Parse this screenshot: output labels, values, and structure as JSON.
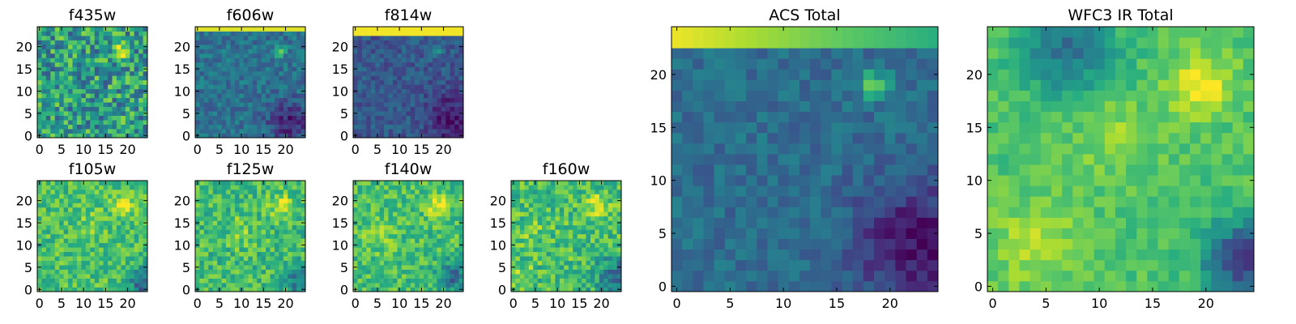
{
  "chart_data": [
    {
      "type": "heatmap",
      "title": "f435w",
      "x_ticks": [
        "0",
        "5",
        "10",
        "15",
        "20"
      ],
      "y_ticks": [
        "0",
        "5",
        "10",
        "15",
        "20"
      ],
      "xlim": [
        0,
        25
      ],
      "ylim": [
        0,
        25
      ],
      "grid_size": 25,
      "colormap": "viridis",
      "features": {
        "base": 0.55,
        "noise": 0.28,
        "blobs": [
          {
            "x": 18.5,
            "y": 19.0,
            "sigma": 1.2,
            "amp": 0.35
          }
        ]
      }
    },
    {
      "type": "heatmap",
      "title": "f606w",
      "x_ticks": [
        "0",
        "5",
        "10",
        "15",
        "20"
      ],
      "y_ticks": [
        "0",
        "5",
        "10",
        "15",
        "20"
      ],
      "xlim": [
        0,
        25
      ],
      "ylim": [
        0,
        25
      ],
      "grid_size": 25,
      "colormap": "viridis",
      "features": {
        "base": 0.38,
        "noise": 0.12,
        "top_band": 0.95,
        "top_rows": 1,
        "blobs": [
          {
            "x": 18.5,
            "y": 19.0,
            "sigma": 1.0,
            "amp": 0.35
          }
        ],
        "dark_region": {
          "x": 21.0,
          "y": 3.0,
          "sigma": 3.5,
          "amp": -0.28
        }
      }
    },
    {
      "type": "heatmap",
      "title": "f814w",
      "x_ticks": [
        "0",
        "5",
        "10",
        "15",
        "20"
      ],
      "y_ticks": [
        "0",
        "5",
        "10",
        "15",
        "20"
      ],
      "xlim": [
        0,
        25
      ],
      "ylim": [
        0,
        25
      ],
      "grid_size": 25,
      "colormap": "viridis",
      "features": {
        "base": 0.28,
        "noise": 0.1,
        "top_band": 0.98,
        "top_rows": 2,
        "blobs": [
          {
            "x": 18.5,
            "y": 19.0,
            "sigma": 1.0,
            "amp": 0.2
          }
        ],
        "dark_region": {
          "x": 22.0,
          "y": 4.0,
          "sigma": 4.0,
          "amp": -0.22
        }
      }
    },
    {
      "type": "heatmap",
      "title": "f105w",
      "x_ticks": [
        "0",
        "5",
        "10",
        "15",
        "20"
      ],
      "y_ticks": [
        "0",
        "5",
        "10",
        "15",
        "20"
      ],
      "xlim": [
        0,
        25
      ],
      "ylim": [
        0,
        25
      ],
      "grid_size": 25,
      "colormap": "viridis",
      "features": {
        "base": 0.7,
        "noise": 0.15,
        "blobs": [
          {
            "x": 19.0,
            "y": 19.0,
            "sigma": 1.6,
            "amp": 0.3
          },
          {
            "x": 12.0,
            "y": 15.0,
            "sigma": 2.0,
            "amp": 0.12
          }
        ],
        "dark_region": {
          "x": 24.0,
          "y": 1.0,
          "sigma": 2.5,
          "amp": -0.4
        }
      }
    },
    {
      "type": "heatmap",
      "title": "f125w",
      "x_ticks": [
        "0",
        "5",
        "10",
        "15",
        "20"
      ],
      "y_ticks": [
        "0",
        "5",
        "10",
        "15",
        "20"
      ],
      "xlim": [
        0,
        25
      ],
      "ylim": [
        0,
        25
      ],
      "grid_size": 25,
      "colormap": "viridis",
      "features": {
        "base": 0.68,
        "noise": 0.16,
        "blobs": [
          {
            "x": 19.0,
            "y": 19.0,
            "sigma": 1.8,
            "amp": 0.3
          },
          {
            "x": 10.0,
            "y": 13.0,
            "sigma": 2.5,
            "amp": 0.12
          }
        ],
        "dark_region": {
          "x": 23.5,
          "y": 2.0,
          "sigma": 2.5,
          "amp": -0.3
        }
      }
    },
    {
      "type": "heatmap",
      "title": "f140w",
      "x_ticks": [
        "0",
        "5",
        "10",
        "15",
        "20"
      ],
      "y_ticks": [
        "0",
        "5",
        "10",
        "15",
        "20"
      ],
      "xlim": [
        0,
        25
      ],
      "ylim": [
        0,
        25
      ],
      "grid_size": 25,
      "colormap": "viridis",
      "features": {
        "base": 0.7,
        "noise": 0.15,
        "blobs": [
          {
            "x": 19.0,
            "y": 19.0,
            "sigma": 1.8,
            "amp": 0.28
          },
          {
            "x": 5.0,
            "y": 12.0,
            "sigma": 2.5,
            "amp": 0.1
          }
        ],
        "dark_region": {
          "x": 22.0,
          "y": 3.0,
          "sigma": 2.5,
          "amp": -0.35
        }
      }
    },
    {
      "type": "heatmap",
      "title": "f160w",
      "x_ticks": [
        "0",
        "5",
        "10",
        "15",
        "20"
      ],
      "y_ticks": [
        "0",
        "5",
        "10",
        "15",
        "20"
      ],
      "xlim": [
        0,
        25
      ],
      "ylim": [
        0,
        25
      ],
      "grid_size": 25,
      "colormap": "viridis",
      "features": {
        "base": 0.7,
        "noise": 0.17,
        "blobs": [
          {
            "x": 19.0,
            "y": 19.0,
            "sigma": 1.8,
            "amp": 0.28
          },
          {
            "x": 4.0,
            "y": 13.0,
            "sigma": 2.0,
            "amp": 0.12
          },
          {
            "x": 2.0,
            "y": 3.0,
            "sigma": 2.0,
            "amp": 0.15
          }
        ],
        "dark_region": {
          "x": 23.0,
          "y": 3.0,
          "sigma": 3.0,
          "amp": -0.35
        }
      }
    },
    {
      "type": "heatmap",
      "title": "ACS Total",
      "x_ticks": [
        "0",
        "5",
        "10",
        "15",
        "20"
      ],
      "y_ticks": [
        "0",
        "5",
        "10",
        "15",
        "20"
      ],
      "xlim": [
        0,
        25
      ],
      "ylim": [
        0,
        25
      ],
      "grid_size": 25,
      "colormap": "viridis",
      "features": {
        "base": 0.36,
        "noise": 0.09,
        "top_band": 0.97,
        "top_rows": 2,
        "top_gradient": true,
        "blobs": [
          {
            "x": 18.5,
            "y": 19.0,
            "sigma": 0.9,
            "amp": 0.45
          }
        ],
        "dark_region": {
          "x": 22.5,
          "y": 4.0,
          "sigma": 4.0,
          "amp": -0.32
        }
      }
    },
    {
      "type": "heatmap",
      "title": "WFC3 IR Total",
      "x_ticks": [
        "0",
        "5",
        "10",
        "15",
        "20"
      ],
      "y_ticks": [
        "0",
        "5",
        "10",
        "15",
        "20"
      ],
      "xlim": [
        0,
        25
      ],
      "ylim": [
        0,
        25
      ],
      "grid_size": 25,
      "colormap": "viridis",
      "features": {
        "base": 0.72,
        "noise": 0.08,
        "blobs": [
          {
            "x": 19.5,
            "y": 19.0,
            "sigma": 2.0,
            "amp": 0.3
          },
          {
            "x": 11.5,
            "y": 14.0,
            "sigma": 2.5,
            "amp": 0.12
          },
          {
            "x": 4.0,
            "y": 4.0,
            "sigma": 3.0,
            "amp": 0.15
          }
        ],
        "dark_region": {
          "x": 23.5,
          "y": 2.5,
          "sigma": 2.5,
          "amp": -0.55
        },
        "dark_top": {
          "x": 7.0,
          "y": 22.5,
          "sigma": 3.0,
          "amp": -0.35
        }
      }
    }
  ]
}
